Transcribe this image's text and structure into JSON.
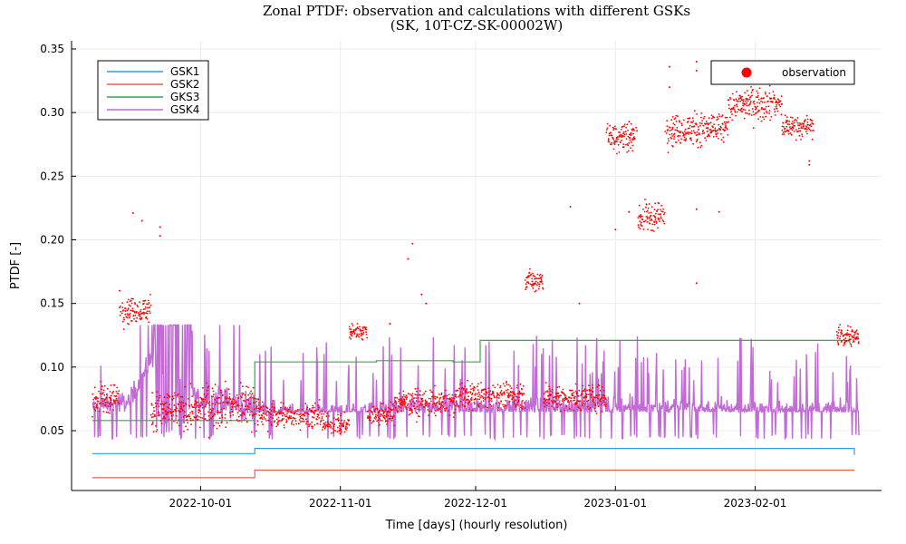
{
  "chart_data": {
    "type": "line",
    "title": "Zonal PTDF: observation and calculations with different GSKs",
    "subtitle": "(SK, 10T-CZ-SK-00002W)",
    "xlabel": "Time [days] (hourly resolution)",
    "ylabel": "PTDF [-]",
    "x_range": [
      "2022-09-07",
      "2023-02-24"
    ],
    "ylim": [
      0.0,
      0.35
    ],
    "x_ticks": [
      "2022-10-01",
      "2022-11-01",
      "2022-12-01",
      "2023-01-01",
      "2023-02-01"
    ],
    "y_ticks": [
      "0.05",
      "0.10",
      "0.15",
      "0.20",
      "0.25",
      "0.30",
      "0.35"
    ],
    "grid": true,
    "legends": [
      {
        "placement": "top-left",
        "entries": [
          "GSK1",
          "GSK2",
          "GKS3",
          "GSK4"
        ]
      },
      {
        "placement": "top-right",
        "entries": [
          "observation"
        ]
      }
    ],
    "series": [
      {
        "name": "GSK1",
        "kind": "step",
        "color": "#2c9fe0",
        "points": [
          [
            "2022-09-07",
            0.032
          ],
          [
            "2022-10-13",
            0.032
          ],
          [
            "2022-10-13",
            0.036
          ],
          [
            "2023-02-23",
            0.036
          ],
          [
            "2023-02-23",
            0.031
          ]
        ]
      },
      {
        "name": "GSK2",
        "kind": "step",
        "color": "#e8604c",
        "points": [
          [
            "2022-09-07",
            0.013
          ],
          [
            "2022-10-13",
            0.013
          ],
          [
            "2022-10-13",
            0.019
          ],
          [
            "2023-02-23",
            0.019
          ]
        ]
      },
      {
        "name": "GKS3",
        "kind": "step",
        "color": "#3ca64a",
        "points": [
          [
            "2022-09-07",
            0.058
          ],
          [
            "2022-10-13",
            0.058
          ],
          [
            "2022-10-13",
            0.104
          ],
          [
            "2022-11-09",
            0.104
          ],
          [
            "2022-11-09",
            0.105
          ],
          [
            "2022-11-26",
            0.105
          ],
          [
            "2022-11-26",
            0.104
          ],
          [
            "2022-12-02",
            0.104
          ],
          [
            "2022-12-02",
            0.121
          ],
          [
            "2023-02-22",
            0.121
          ],
          [
            "2023-02-22",
            0.118
          ]
        ]
      },
      {
        "name": "GSK4",
        "kind": "noisy-line",
        "color": "#c26ad6",
        "base": 0.065,
        "low": 0.043,
        "high": 0.133,
        "points": [
          [
            "2022-09-07",
            0.07
          ],
          [
            "2022-09-15",
            0.075
          ],
          [
            "2022-09-22",
            0.12
          ],
          [
            "2022-10-01",
            0.075
          ],
          [
            "2022-10-10",
            0.07
          ],
          [
            "2022-10-20",
            0.065
          ],
          [
            "2022-11-01",
            0.065
          ],
          [
            "2022-11-15",
            0.07
          ],
          [
            "2022-12-01",
            0.07
          ],
          [
            "2022-12-15",
            0.07
          ],
          [
            "2023-01-01",
            0.07
          ],
          [
            "2023-01-15",
            0.07
          ],
          [
            "2023-02-01",
            0.068
          ],
          [
            "2023-02-15",
            0.068
          ],
          [
            "2023-02-24",
            0.065
          ]
        ]
      }
    ],
    "observation": {
      "name": "observation",
      "color": "#ff0000",
      "segments": [
        {
          "from": "2022-09-07",
          "to": "2022-09-13",
          "y": 0.075,
          "spread": 0.006
        },
        {
          "from": "2022-09-13",
          "to": "2022-09-20",
          "y": 0.145,
          "spread": 0.005
        },
        {
          "from": "2022-09-20",
          "to": "2022-10-01",
          "y": 0.066,
          "spread": 0.007
        },
        {
          "from": "2022-10-01",
          "to": "2022-10-14",
          "y": 0.07,
          "spread": 0.008
        },
        {
          "from": "2022-10-14",
          "to": "2022-10-28",
          "y": 0.062,
          "spread": 0.005
        },
        {
          "from": "2022-10-28",
          "to": "2022-11-03",
          "y": 0.055,
          "spread": 0.004
        },
        {
          "from": "2022-11-03",
          "to": "2022-11-07",
          "y": 0.128,
          "spread": 0.003
        },
        {
          "from": "2022-11-07",
          "to": "2022-11-13",
          "y": 0.063,
          "spread": 0.004
        },
        {
          "from": "2022-11-13",
          "to": "2022-11-27",
          "y": 0.072,
          "spread": 0.005
        },
        {
          "from": "2022-11-27",
          "to": "2022-12-12",
          "y": 0.078,
          "spread": 0.005
        },
        {
          "from": "2022-12-12",
          "to": "2022-12-16",
          "y": 0.168,
          "spread": 0.004
        },
        {
          "from": "2022-12-16",
          "to": "2022-12-30",
          "y": 0.076,
          "spread": 0.005
        },
        {
          "from": "2022-12-30",
          "to": "2023-01-06",
          "y": 0.282,
          "spread": 0.006
        },
        {
          "from": "2023-01-06",
          "to": "2023-01-12",
          "y": 0.218,
          "spread": 0.006
        },
        {
          "from": "2023-01-12",
          "to": "2023-01-26",
          "y": 0.287,
          "spread": 0.006
        },
        {
          "from": "2023-01-26",
          "to": "2023-02-07",
          "y": 0.307,
          "spread": 0.006
        },
        {
          "from": "2023-02-07",
          "to": "2023-02-14",
          "y": 0.289,
          "spread": 0.004
        },
        {
          "from": "2023-02-19",
          "to": "2023-02-24",
          "y": 0.124,
          "spread": 0.004
        }
      ],
      "outliers": [
        [
          "2022-09-13",
          0.16
        ],
        [
          "2022-09-16",
          0.221
        ],
        [
          "2022-09-18",
          0.215
        ],
        [
          "2022-09-22",
          0.21
        ],
        [
          "2022-09-22",
          0.203
        ],
        [
          "2022-11-17",
          0.197
        ],
        [
          "2022-11-16",
          0.185
        ],
        [
          "2022-11-19",
          0.157
        ],
        [
          "2022-11-20",
          0.15
        ],
        [
          "2022-11-12",
          0.134
        ],
        [
          "2022-12-22",
          0.226
        ],
        [
          "2022-12-24",
          0.15
        ],
        [
          "2023-01-01",
          0.208
        ],
        [
          "2023-01-04",
          0.222
        ],
        [
          "2023-01-09",
          0.216
        ],
        [
          "2023-01-13",
          0.336
        ],
        [
          "2023-01-13",
          0.32
        ],
        [
          "2023-01-19",
          0.34
        ],
        [
          "2023-01-19",
          0.333
        ],
        [
          "2023-01-19",
          0.224
        ],
        [
          "2023-01-24",
          0.222
        ],
        [
          "2023-01-19",
          0.166
        ],
        [
          "2023-02-13",
          0.262
        ],
        [
          "2023-02-13",
          0.259
        ]
      ]
    }
  }
}
